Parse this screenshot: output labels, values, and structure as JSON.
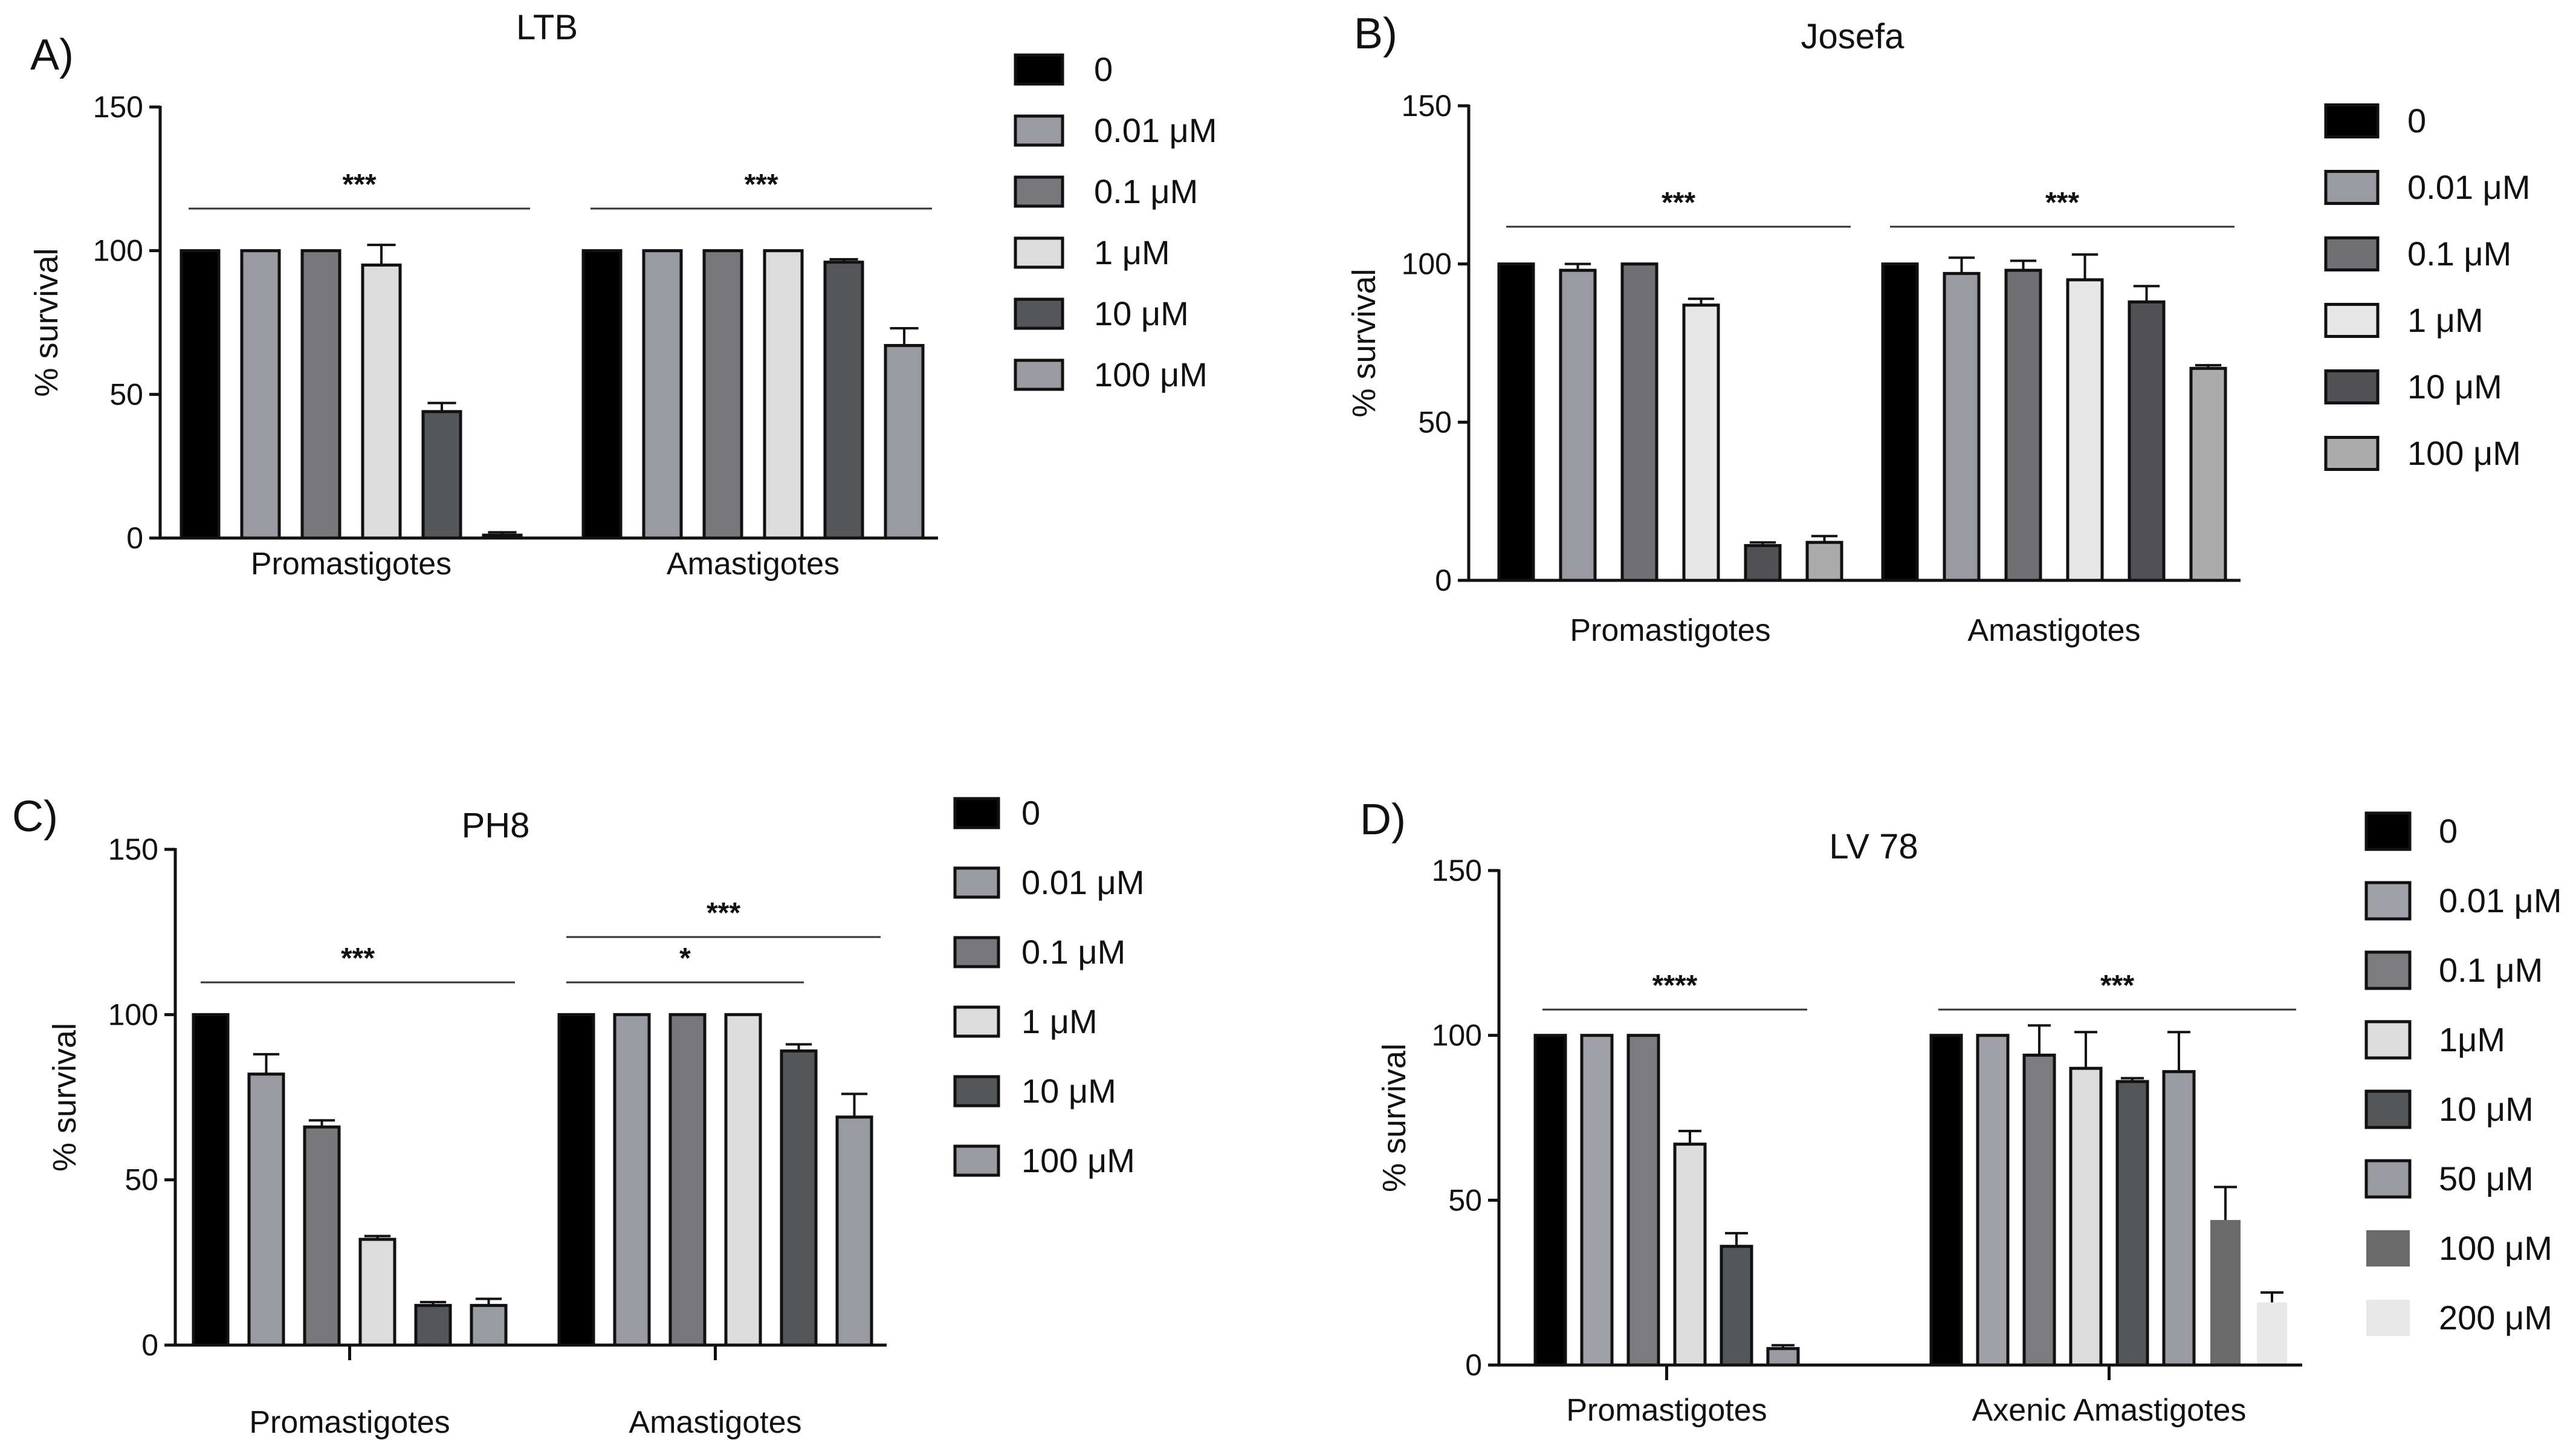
{
  "chart_data": [
    {
      "panel": "A)",
      "type": "bar",
      "title": "LTB",
      "ylabel": "% survival",
      "ylim": [
        0,
        150
      ],
      "yticks": [
        0,
        50,
        100,
        150
      ],
      "groups": [
        "Promastigotes",
        "Amastigotes"
      ],
      "series": [
        {
          "name": "0",
          "color": "#000000",
          "values": [
            100,
            100
          ],
          "errors": [
            0,
            0
          ]
        },
        {
          "name": "0.01 μM",
          "color": "#9a9aa2",
          "values": [
            100,
            100
          ],
          "errors": [
            0,
            0
          ]
        },
        {
          "name": "0.1 μM",
          "color": "#77777c",
          "values": [
            100,
            100
          ],
          "errors": [
            0,
            0
          ]
        },
        {
          "name": "1 μM",
          "color": "#dcdcdc",
          "values": [
            95,
            100
          ],
          "errors": [
            7,
            0
          ]
        },
        {
          "name": "10 μM",
          "color": "#55565a",
          "values": [
            44,
            96
          ],
          "errors": [
            3,
            1
          ]
        },
        {
          "name": "100 μM",
          "color": "#9a9aa2",
          "values": [
            1,
            67
          ],
          "errors": [
            1,
            6
          ]
        }
      ],
      "significance": [
        {
          "group": 0,
          "label": "***"
        },
        {
          "group": 1,
          "label": "***"
        }
      ]
    },
    {
      "panel": "B)",
      "type": "bar",
      "title": "Josefa",
      "ylabel": "% survival",
      "ylim": [
        0,
        150
      ],
      "yticks": [
        0,
        50,
        100,
        150
      ],
      "groups": [
        "Promastigotes",
        "Amastigotes"
      ],
      "series": [
        {
          "name": "0",
          "color": "#000000",
          "values": [
            100,
            100
          ],
          "errors": [
            0,
            0
          ]
        },
        {
          "name": "0.01 μM",
          "color": "#9a9aa2",
          "values": [
            98,
            97
          ],
          "errors": [
            2,
            5
          ]
        },
        {
          "name": "0.1 μM",
          "color": "#6f6f74",
          "values": [
            100,
            98
          ],
          "errors": [
            0,
            3
          ]
        },
        {
          "name": "1 μM",
          "color": "#e6e6e6",
          "values": [
            87,
            95
          ],
          "errors": [
            2,
            8
          ]
        },
        {
          "name": "10 μM",
          "color": "#505055",
          "values": [
            11,
            88
          ],
          "errors": [
            1,
            5
          ]
        },
        {
          "name": "100 μM",
          "color": "#ababab",
          "values": [
            12,
            67
          ],
          "errors": [
            2,
            1
          ]
        }
      ],
      "significance": [
        {
          "group": 0,
          "label": "***"
        },
        {
          "group": 1,
          "label": "***"
        }
      ]
    },
    {
      "panel": "C)",
      "type": "bar",
      "title": "PH8",
      "ylabel": "% survival",
      "ylim": [
        0,
        150
      ],
      "yticks": [
        0,
        50,
        100,
        150
      ],
      "groups": [
        "Promastigotes",
        "Amastigotes"
      ],
      "series": [
        {
          "name": "0",
          "color": "#000000",
          "values": [
            100,
            100
          ],
          "errors": [
            0,
            0
          ]
        },
        {
          "name": "0.01 μM",
          "color": "#9a9aa2",
          "values": [
            82,
            100
          ],
          "errors": [
            6,
            0
          ]
        },
        {
          "name": "0.1 μM",
          "color": "#77777c",
          "values": [
            66,
            100
          ],
          "errors": [
            2,
            0
          ]
        },
        {
          "name": "1 μM",
          "color": "#dcdcdc",
          "values": [
            32,
            100
          ],
          "errors": [
            1,
            0
          ]
        },
        {
          "name": "10 μM",
          "color": "#55565a",
          "values": [
            12,
            89
          ],
          "errors": [
            1,
            2
          ]
        },
        {
          "name": "100 μM",
          "color": "#9a9aa2",
          "values": [
            12,
            69
          ],
          "errors": [
            2,
            7
          ]
        }
      ],
      "significance": [
        {
          "group": 0,
          "label": "***",
          "level": 0
        },
        {
          "group": 1,
          "label": "***",
          "level": 1
        },
        {
          "group": 1,
          "label": "*",
          "level": 0,
          "partial": true
        }
      ]
    },
    {
      "panel": "D)",
      "type": "bar",
      "title": "LV 78",
      "ylabel": "% survival",
      "ylim": [
        0,
        150
      ],
      "yticks": [
        0,
        50,
        100,
        150
      ],
      "groups": [
        "Promastigotes",
        "Axenic Amastigotes"
      ],
      "series": [
        {
          "name": "0",
          "color": "#000000",
          "values": [
            100,
            100
          ],
          "errors": [
            0,
            0
          ],
          "outline": true
        },
        {
          "name": "0.01 μM",
          "color": "#a0a0a8",
          "values": [
            100,
            100
          ],
          "errors": [
            0,
            0
          ],
          "outline": true
        },
        {
          "name": "0.1 μM",
          "color": "#7b7b80",
          "values": [
            100,
            94
          ],
          "errors": [
            0,
            9
          ],
          "outline": true
        },
        {
          "name": "1μM",
          "color": "#dcdcdc",
          "values": [
            67,
            90
          ],
          "errors": [
            4,
            11
          ],
          "outline": true
        },
        {
          "name": "10 μM",
          "color": "#55565a",
          "values": [
            36,
            86
          ],
          "errors": [
            4,
            1
          ],
          "outline": true
        },
        {
          "name": "50 μM",
          "color": "#9a9aa2",
          "values": [
            5,
            89
          ],
          "errors": [
            1,
            12
          ],
          "outline": true
        },
        {
          "name": "100 μM",
          "color": "#6b6b6b",
          "values": [
            null,
            44
          ],
          "errors": [
            null,
            10
          ],
          "outline": false
        },
        {
          "name": "200 μM",
          "color": "#e8e8e8",
          "values": [
            null,
            19
          ],
          "errors": [
            null,
            3
          ],
          "outline": false
        }
      ],
      "significance": [
        {
          "group": 0,
          "label": "****"
        },
        {
          "group": 1,
          "label": "***"
        }
      ]
    }
  ]
}
